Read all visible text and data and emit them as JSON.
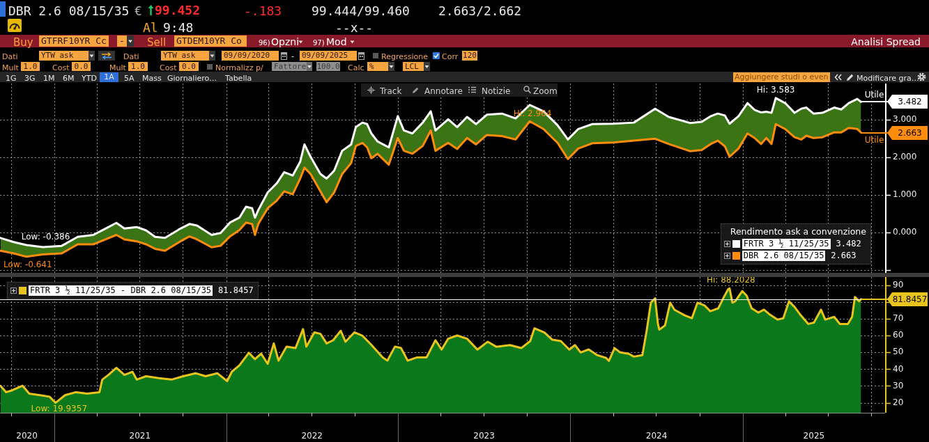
{
  "chart_data": [
    {
      "type": "line",
      "title": "DBR 2.6 08/15/35",
      "subtitle": "Analisi Spread",
      "legend_title": "Rendimento ask a convenzione",
      "annotations": [
        "€",
        "99.452",
        "-.183",
        "99.444/99.460",
        "2.663/2.662",
        "Al",
        "9:48",
        "--x--",
        "Buy",
        "GTFRF10YR Cc",
        "-",
        "Sell",
        "GTDEM10YR Co",
        "96)",
        "Opzni",
        "97)",
        "Mod",
        "Dati",
        "YTW ask",
        "Dati",
        "YTW ask",
        "09/09/2020",
        "-",
        "09/09/2025",
        "Regressione",
        "Corr",
        "120",
        "Mult",
        "1.0",
        "Cost",
        "0.0",
        "Mult",
        "1.0",
        "Cost",
        "0.0",
        "Normalizz p/",
        "Fattore",
        "100.0",
        "Calc",
        "%",
        "LCL",
        "1G",
        "3G",
        "1M",
        "6M",
        "YTD",
        "1A",
        "5A",
        "Mass",
        "Giornaliero…",
        "Tabella",
        "Aggiungere studi o even",
        "Modificare gra…",
        "Track",
        "Annotare",
        "Notizie",
        "Zoom",
        {
          "text": "Hi: 3.583",
          "x": "2025-03-12",
          "y": 3.583
        },
        {
          "text": "Utile",
          "x": "2025-09-09",
          "y": 3.482
        },
        {
          "text": "Hi: 2.964",
          "x": "2023-10-07",
          "y": 2.964
        },
        {
          "text": "Low: -0.386",
          "x": "2020-12-08",
          "y": -0.386
        },
        {
          "text": "Low: -0.641",
          "x": "2020-11-03",
          "y": -0.641
        },
        {
          "text": "Utile",
          "x": "2025-09-09",
          "y": 2.663
        }
      ],
      "x": [
        "2020-09-09",
        "2020-10-07",
        "2020-11-03",
        "2020-12-08",
        "2021-01-17",
        "2021-02-20",
        "2021-03-25",
        "2021-04-20",
        "2021-05-13",
        "2021-05-30",
        "2021-06-25",
        "2021-07-15",
        "2021-08-03",
        "2021-08-24",
        "2021-09-26",
        "2021-10-15",
        "2021-10-31",
        "2021-12-01",
        "2021-12-20",
        "2022-01-09",
        "2022-01-29",
        "2022-02-12",
        "2022-02-25",
        "2022-03-03",
        "2022-03-10",
        "2022-03-30",
        "2022-04-18",
        "2022-05-04",
        "2022-05-22",
        "2022-06-07",
        "2022-06-16",
        "2022-06-29",
        "2022-07-20",
        "2022-08-02",
        "2022-08-18",
        "2022-09-04",
        "2022-09-23",
        "2022-10-03",
        "2022-10-17",
        "2022-10-27",
        "2022-11-05",
        "2022-11-18",
        "2022-12-12",
        "2022-12-31",
        "2023-01-13",
        "2023-01-31",
        "2023-02-22",
        "2023-03-11",
        "2023-03-21",
        "2023-04-17",
        "2023-05-06",
        "2023-05-27",
        "2023-06-15",
        "2023-07-08",
        "2023-08-09",
        "2023-09-07",
        "2023-10-07",
        "2023-11-05",
        "2023-12-05",
        "2023-12-27",
        "2024-01-18",
        "2024-02-17",
        "2024-04-01",
        "2024-05-15",
        "2024-06-29",
        "2024-07-28",
        "2024-09-11",
        "2024-10-06",
        "2024-10-25",
        "2024-11-09",
        "2024-11-24",
        "2024-12-04",
        "2024-12-23",
        "2025-01-11",
        "2025-01-26",
        "2025-02-09",
        "2025-02-20",
        "2025-03-03",
        "2025-03-12",
        "2025-04-01",
        "2025-04-21",
        "2025-05-05",
        "2025-05-16",
        "2025-05-31",
        "2025-06-19",
        "2025-07-14",
        "2025-07-29",
        "2025-08-14",
        "2025-09-01",
        "2025-09-09"
      ],
      "series": [
        {
          "name": "FRTR 3 ½ 11/25/35",
          "color": "#ffffff",
          "values": [
            -0.14,
            -0.25,
            -0.33,
            -0.386,
            -0.35,
            -0.11,
            -0.06,
            0.11,
            0.26,
            0.11,
            0.15,
            0.06,
            -0.11,
            -0.14,
            0.11,
            0.23,
            0.19,
            -0.06,
            -0.01,
            0.27,
            0.4,
            0.69,
            0.65,
            0.4,
            0.6,
            1.07,
            1.31,
            1.61,
            1.52,
            1.89,
            2.35,
            2.02,
            1.56,
            1.44,
            1.65,
            2.18,
            2.35,
            2.81,
            2.93,
            2.89,
            2.64,
            2.43,
            2.27,
            3.1,
            2.72,
            2.64,
            2.93,
            3.23,
            2.72,
            3.02,
            2.81,
            3.08,
            2.89,
            3.14,
            3.17,
            3.04,
            3.4,
            3.23,
            2.86,
            2.48,
            2.76,
            2.89,
            2.9,
            2.93,
            3.3,
            3.08,
            2.92,
            2.95,
            3.1,
            3.17,
            3.12,
            2.9,
            3.1,
            3.45,
            3.27,
            3.2,
            3.22,
            3.19,
            3.583,
            3.45,
            3.19,
            3.3,
            3.33,
            3.17,
            3.19,
            3.33,
            3.28,
            3.45,
            3.56,
            3.482
          ],
          "upper": [
            -0.14,
            -0.25,
            -0.33,
            -0.386,
            -0.35,
            -0.11,
            -0.06,
            0.11,
            0.26,
            0.11,
            0.15,
            0.06,
            -0.11,
            -0.14,
            0.11,
            0.23,
            0.19,
            -0.06,
            -0.01,
            0.27,
            0.4,
            0.69,
            0.65,
            0.4,
            0.6,
            1.07,
            1.31,
            1.61,
            1.52,
            1.89,
            2.35,
            2.02,
            1.56,
            1.44,
            1.65,
            2.18,
            2.35,
            2.81,
            2.93,
            2.89,
            2.64,
            2.43,
            2.27,
            3.1,
            2.72,
            2.64,
            2.93,
            3.23,
            2.72,
            3.02,
            2.81,
            3.08,
            2.89,
            3.14,
            3.17,
            3.04,
            3.4,
            3.23,
            2.86,
            2.48,
            2.76,
            2.89,
            2.9,
            2.93,
            3.3,
            3.08,
            2.92,
            2.95,
            3.1,
            3.17,
            3.12,
            2.9,
            3.1,
            3.45,
            3.27,
            3.2,
            3.22,
            3.19,
            3.583,
            3.45,
            3.19,
            3.3,
            3.33,
            3.17,
            3.19,
            3.33,
            3.28,
            3.45,
            3.56,
            3.482
          ],
          "lower": [
            -0.48,
            -0.55,
            -0.641,
            -0.58,
            -0.55,
            -0.31,
            -0.31,
            -0.18,
            -0.06,
            -0.18,
            -0.23,
            -0.31,
            -0.43,
            -0.48,
            -0.23,
            -0.1,
            -0.18,
            -0.39,
            -0.35,
            -0.1,
            0.07,
            0.27,
            0.23,
            -0.06,
            0.23,
            0.65,
            0.85,
            1.1,
            1.02,
            1.44,
            1.73,
            1.56,
            1.1,
            0.81,
            1.07,
            1.56,
            1.85,
            2.31,
            2.39,
            2.27,
            1.98,
            2.1,
            1.81,
            2.52,
            2.18,
            2.1,
            2.31,
            2.72,
            2.18,
            2.39,
            2.23,
            2.52,
            2.35,
            2.6,
            2.57,
            2.48,
            2.964,
            2.76,
            2.39,
            1.96,
            2.24,
            2.38,
            2.4,
            2.45,
            2.5,
            2.36,
            2.17,
            2.2,
            2.36,
            2.45,
            2.3,
            2.02,
            2.24,
            2.64,
            2.52,
            2.36,
            2.52,
            2.36,
            2.89,
            2.76,
            2.54,
            2.48,
            2.58,
            2.52,
            2.54,
            2.67,
            2.67,
            2.79,
            2.76,
            2.663
          ],
          "value_labels": [
            null,
            null,
            null,
            null,
            null,
            null,
            null,
            null,
            null,
            null,
            null,
            null,
            null,
            null,
            null,
            null,
            null,
            null,
            null,
            null,
            null,
            null,
            null,
            null,
            null,
            null,
            null,
            null,
            null,
            null,
            null,
            null,
            null,
            null,
            null,
            null,
            null,
            null,
            null,
            null,
            null,
            null,
            null,
            null,
            null,
            null,
            null,
            null,
            null,
            null,
            null,
            null,
            null,
            null,
            null,
            null,
            null,
            null,
            null,
            null,
            null,
            null,
            null,
            null,
            null,
            null,
            null,
            null,
            null,
            null,
            null,
            null,
            null,
            null,
            null,
            null,
            null,
            null,
            null,
            null,
            null,
            null,
            null,
            null,
            null,
            null,
            null,
            null,
            null,
            "3.482"
          ]
        },
        {
          "name": "DBR 2.6 08/15/35",
          "color": "#ff8c0a",
          "values": [
            -0.48,
            -0.55,
            -0.641,
            -0.58,
            -0.55,
            -0.31,
            -0.31,
            -0.18,
            -0.06,
            -0.18,
            -0.23,
            -0.31,
            -0.43,
            -0.48,
            -0.23,
            -0.1,
            -0.18,
            -0.39,
            -0.35,
            -0.1,
            0.07,
            0.27,
            0.23,
            -0.06,
            0.23,
            0.65,
            0.85,
            1.1,
            1.02,
            1.44,
            1.73,
            1.56,
            1.1,
            0.81,
            1.07,
            1.56,
            1.85,
            2.31,
            2.39,
            2.27,
            1.98,
            2.1,
            1.81,
            2.52,
            2.18,
            2.1,
            2.31,
            2.72,
            2.18,
            2.39,
            2.23,
            2.52,
            2.35,
            2.6,
            2.57,
            2.48,
            2.964,
            2.76,
            2.39,
            1.96,
            2.24,
            2.38,
            2.4,
            2.45,
            2.5,
            2.36,
            2.17,
            2.2,
            2.36,
            2.45,
            2.3,
            2.02,
            2.24,
            2.64,
            2.52,
            2.36,
            2.52,
            2.36,
            2.89,
            2.76,
            2.54,
            2.48,
            2.58,
            2.52,
            2.54,
            2.67,
            2.67,
            2.79,
            2.76,
            2.663
          ],
          "value_labels": [
            null,
            null,
            null,
            null,
            null,
            null,
            null,
            null,
            null,
            null,
            null,
            null,
            null,
            null,
            null,
            null,
            null,
            null,
            null,
            null,
            null,
            null,
            null,
            null,
            null,
            null,
            null,
            null,
            null,
            null,
            null,
            null,
            null,
            null,
            null,
            null,
            null,
            null,
            null,
            null,
            null,
            null,
            null,
            null,
            null,
            null,
            null,
            null,
            null,
            null,
            null,
            null,
            null,
            null,
            null,
            null,
            null,
            null,
            null,
            null,
            null,
            null,
            null,
            null,
            null,
            null,
            null,
            null,
            null,
            null,
            null,
            null,
            null,
            null,
            null,
            null,
            null,
            null,
            null,
            null,
            null,
            null,
            null,
            null,
            null,
            null,
            null,
            null,
            null,
            "2.663"
          ]
        }
      ],
      "xlim": [
        "2020-09-08",
        "2025-10-30"
      ],
      "xticks": [
        {
          "value": "2020-10-01",
          "label": null
        },
        {
          "value": "2021-01-01",
          "label": null
        },
        {
          "value": "2021-04-01",
          "label": null
        },
        {
          "value": "2021-07-01",
          "label": null
        },
        {
          "value": "2021-10-01",
          "label": null
        },
        {
          "value": "2022-01-01",
          "label": null
        },
        {
          "value": "2022-04-01",
          "label": null
        },
        {
          "value": "2022-07-01",
          "label": null
        },
        {
          "value": "2022-10-01",
          "label": null
        },
        {
          "value": "2023-01-01",
          "label": null
        },
        {
          "value": "2023-04-01",
          "label": null
        },
        {
          "value": "2023-07-01",
          "label": null
        },
        {
          "value": "2023-10-01",
          "label": null
        },
        {
          "value": "2024-01-01",
          "label": null
        },
        {
          "value": "2024-04-01",
          "label": null
        },
        {
          "value": "2024-07-01",
          "label": null
        },
        {
          "value": "2024-10-01",
          "label": null
        },
        {
          "value": "2025-01-01",
          "label": null
        },
        {
          "value": "2025-04-01",
          "label": null
        },
        {
          "value": "2025-07-01",
          "label": null
        },
        {
          "value": "2025-10-01",
          "label": null
        }
      ],
      "ylim": [
        -1.07,
        3.97
      ],
      "yticks": [
        {
          "value": -1,
          "label": null
        },
        {
          "value": 0,
          "label": "0.000"
        },
        {
          "value": 1,
          "label": "1.000"
        },
        {
          "value": 2,
          "label": "2.000"
        },
        {
          "value": 3,
          "label": "3.000"
        }
      ],
      "grid": true,
      "legend": "bottom right",
      "tick_labels": "y"
    },
    {
      "type": "area",
      "annotations": [
        {
          "text": "Hi: 88.2028",
          "x": "2024-12-04",
          "y": 88.2028
        },
        {
          "text": "Low: 19.9357",
          "x": "2021-01-04",
          "y": 19.9357
        }
      ],
      "x": [
        "2020-09-09",
        "2020-09-21",
        "2020-10-04",
        "2020-10-26",
        "2020-11-09",
        "2020-12-02",
        "2020-12-22",
        "2021-01-04",
        "2021-01-24",
        "2021-02-16",
        "2021-03-12",
        "2021-04-07",
        "2021-04-13",
        "2021-04-26",
        "2021-05-13",
        "2021-05-30",
        "2021-06-16",
        "2021-06-25",
        "2021-07-15",
        "2021-08-11",
        "2021-09-07",
        "2021-10-02",
        "2021-10-28",
        "2021-11-18",
        "2021-12-13",
        "2022-01-03",
        "2022-01-13",
        "2022-01-29",
        "2022-02-18",
        "2022-03-03",
        "2022-03-16",
        "2022-03-30",
        "2022-04-12",
        "2022-04-22",
        "2022-05-09",
        "2022-05-28",
        "2022-06-13",
        "2022-06-20",
        "2022-07-07",
        "2022-07-20",
        "2022-08-02",
        "2022-08-16",
        "2022-09-01",
        "2022-09-11",
        "2022-09-30",
        "2022-10-17",
        "2022-11-05",
        "2022-11-29",
        "2022-12-09",
        "2022-12-25",
        "2023-01-07",
        "2023-01-21",
        "2023-02-09",
        "2023-03-02",
        "2023-03-21",
        "2023-04-03",
        "2023-04-17",
        "2023-05-06",
        "2023-05-27",
        "2023-06-18",
        "2023-07-10",
        "2023-07-28",
        "2023-08-26",
        "2023-09-19",
        "2023-10-08",
        "2023-10-17",
        "2023-11-07",
        "2023-11-24",
        "2023-12-12",
        "2023-12-30",
        "2024-01-11",
        "2024-01-23",
        "2024-02-09",
        "2024-02-27",
        "2024-03-17",
        "2024-03-23",
        "2024-04-04",
        "2024-04-16",
        "2024-05-04",
        "2024-05-15",
        "2024-06-02",
        "2024-06-11",
        "2024-06-20",
        "2024-06-29",
        "2024-07-05",
        "2024-07-08",
        "2024-07-20",
        "2024-07-31",
        "2024-08-09",
        "2024-08-31",
        "2024-09-15",
        "2024-09-27",
        "2024-10-12",
        "2024-10-24",
        "2024-11-10",
        "2024-11-22",
        "2024-12-01",
        "2024-12-04",
        "2024-12-10",
        "2024-12-16",
        "2024-12-31",
        "2025-01-09",
        "2025-01-20",
        "2025-02-03",
        "2025-02-15",
        "2025-02-26",
        "2025-03-16",
        "2025-03-28",
        "2025-04-09",
        "2025-04-21",
        "2025-05-02",
        "2025-05-20",
        "2025-06-01",
        "2025-06-16",
        "2025-06-25",
        "2025-07-14",
        "2025-07-26",
        "2025-08-12",
        "2025-08-21",
        "2025-08-27",
        "2025-09-05",
        "2025-09-09"
      ],
      "series": [
        {
          "type": "line",
          "name": "FRTR 3 ½ 11/25/35 - DBR 2.6 08/15/35",
          "color": "#e8c41c",
          "values": [
            30.1,
            26.3,
            27.4,
            30.1,
            25.4,
            24.5,
            23.6,
            19.9357,
            24.5,
            26.3,
            25.4,
            26.3,
            33.8,
            36.6,
            40.8,
            36.6,
            38.5,
            33.8,
            35.8,
            34.7,
            33.8,
            35.8,
            37.6,
            35.8,
            37.6,
            32.9,
            38.5,
            42.3,
            49.8,
            46.0,
            49.3,
            43.2,
            55.4,
            45.1,
            53.5,
            52.6,
            63.9,
            53.5,
            62.0,
            61.1,
            55.4,
            57.3,
            62.9,
            56.4,
            62.0,
            60.0,
            54.5,
            47.0,
            45.1,
            53.5,
            52.6,
            45.1,
            47.0,
            47.0,
            57.3,
            51.7,
            58.2,
            60.1,
            58.2,
            51.7,
            56.4,
            53.4,
            54.4,
            52.6,
            56.8,
            64.4,
            61.9,
            57.6,
            56.8,
            51.7,
            54.4,
            50.0,
            51.8,
            48.4,
            46.7,
            45.0,
            52.6,
            50.0,
            49.2,
            47.5,
            48.4,
            62.8,
            79.7,
            82.3,
            67.0,
            63.6,
            66.1,
            79.7,
            75.5,
            72.1,
            70.4,
            79.7,
            78.0,
            74.6,
            76.3,
            83.1,
            87.7,
            88.2028,
            79.7,
            80.5,
            86.6,
            84.0,
            76.3,
            73.8,
            75.5,
            72.9,
            69.6,
            70.4,
            80.5,
            77.1,
            72.9,
            67.0,
            67.8,
            75.5,
            69.6,
            71.2,
            67.0,
            67.0,
            71.2,
            83.1,
            80.5,
            81.8457
          ],
          "value_labels": [
            null,
            null,
            null,
            null,
            null,
            null,
            null,
            null,
            null,
            null,
            null,
            null,
            null,
            null,
            null,
            null,
            null,
            null,
            null,
            null,
            null,
            null,
            null,
            null,
            null,
            null,
            null,
            null,
            null,
            null,
            null,
            null,
            null,
            null,
            null,
            null,
            null,
            null,
            null,
            null,
            null,
            null,
            null,
            null,
            null,
            null,
            null,
            null,
            null,
            null,
            null,
            null,
            null,
            null,
            null,
            null,
            null,
            null,
            null,
            null,
            null,
            null,
            null,
            null,
            null,
            null,
            null,
            null,
            null,
            null,
            null,
            null,
            null,
            null,
            null,
            null,
            null,
            null,
            null,
            null,
            null,
            null,
            null,
            null,
            null,
            null,
            null,
            null,
            null,
            null,
            null,
            null,
            null,
            null,
            null,
            null,
            null,
            null,
            null,
            null,
            null,
            null,
            null,
            null,
            null,
            null,
            null,
            null,
            null,
            null,
            null,
            null,
            null,
            null,
            null,
            null,
            null,
            null,
            null,
            null,
            null,
            "81.8457"
          ]
        },
        {
          "color": "#0b781c",
          "values": [
            30.1,
            26.3,
            27.4,
            30.1,
            25.4,
            24.5,
            23.6,
            19.9357,
            24.5,
            26.3,
            25.4,
            26.3,
            33.8,
            36.6,
            40.8,
            36.6,
            38.5,
            33.8,
            35.8,
            34.7,
            33.8,
            35.8,
            37.6,
            35.8,
            37.6,
            32.9,
            38.5,
            42.3,
            49.8,
            46.0,
            49.3,
            43.2,
            55.4,
            45.1,
            53.5,
            52.6,
            63.9,
            53.5,
            62.0,
            61.1,
            55.4,
            57.3,
            62.9,
            56.4,
            62.0,
            60.0,
            54.5,
            47.0,
            45.1,
            53.5,
            52.6,
            45.1,
            47.0,
            47.0,
            57.3,
            51.7,
            58.2,
            60.1,
            58.2,
            51.7,
            56.4,
            53.4,
            54.4,
            52.6,
            56.8,
            64.4,
            61.9,
            57.6,
            56.8,
            51.7,
            54.4,
            50.0,
            51.8,
            48.4,
            46.7,
            45.0,
            52.6,
            50.0,
            49.2,
            47.5,
            48.4,
            62.8,
            79.7,
            82.3,
            67.0,
            63.6,
            66.1,
            79.7,
            75.5,
            72.1,
            70.4,
            79.7,
            78.0,
            74.6,
            76.3,
            83.1,
            87.7,
            88.2028,
            79.7,
            80.5,
            86.6,
            84.0,
            76.3,
            73.8,
            75.5,
            72.9,
            69.6,
            70.4,
            80.5,
            77.1,
            72.9,
            67.0,
            67.8,
            75.5,
            69.6,
            71.2,
            67.0,
            67.0,
            71.2,
            83.1,
            80.5,
            81.8457
          ]
        }
      ],
      "ref_lines": [
        {
          "axis": "y",
          "value": 81.8457,
          "color": "#ffffff"
        }
      ],
      "xlim": [
        "2020-09-08",
        "2025-10-30"
      ],
      "xticks": [
        {
          "value": "2020-10-01",
          "label": null
        },
        {
          "value": "2020-11-04",
          "label": "2020"
        },
        {
          "value": "2021-01-01",
          "label": null
        },
        {
          "value": "2021-04-01",
          "label": null
        },
        {
          "value": "2021-07-01",
          "label": null
        },
        {
          "value": "2021-07-02",
          "label": "2021"
        },
        {
          "value": "2021-10-01",
          "label": null
        },
        {
          "value": "2022-01-01",
          "label": null
        },
        {
          "value": "2022-04-01",
          "label": null
        },
        {
          "value": "2022-07-01",
          "label": null
        },
        {
          "value": "2022-07-02",
          "label": "2022"
        },
        {
          "value": "2022-10-01",
          "label": null
        },
        {
          "value": "2023-01-01",
          "label": null
        },
        {
          "value": "2023-04-01",
          "label": null
        },
        {
          "value": "2023-07-01",
          "label": null
        },
        {
          "value": "2023-07-02",
          "label": "2023"
        },
        {
          "value": "2023-10-01",
          "label": null
        },
        {
          "value": "2024-01-01",
          "label": null
        },
        {
          "value": "2024-04-01",
          "label": null
        },
        {
          "value": "2024-07-01",
          "label": null
        },
        {
          "value": "2024-07-02",
          "label": "2024"
        },
        {
          "value": "2024-10-01",
          "label": null
        },
        {
          "value": "2025-01-01",
          "label": null
        },
        {
          "value": "2025-04-01",
          "label": null
        },
        {
          "value": "2025-06-01",
          "label": "2025"
        },
        {
          "value": "2025-07-01",
          "label": null
        },
        {
          "value": "2025-10-01",
          "label": null
        }
      ],
      "ylim": [
        14,
        95
      ],
      "yticks": [
        20,
        30,
        40,
        50,
        60,
        70,
        {
          "value": 80,
          "label": null
        },
        90
      ],
      "grid": true,
      "legend": "top left"
    }
  ]
}
